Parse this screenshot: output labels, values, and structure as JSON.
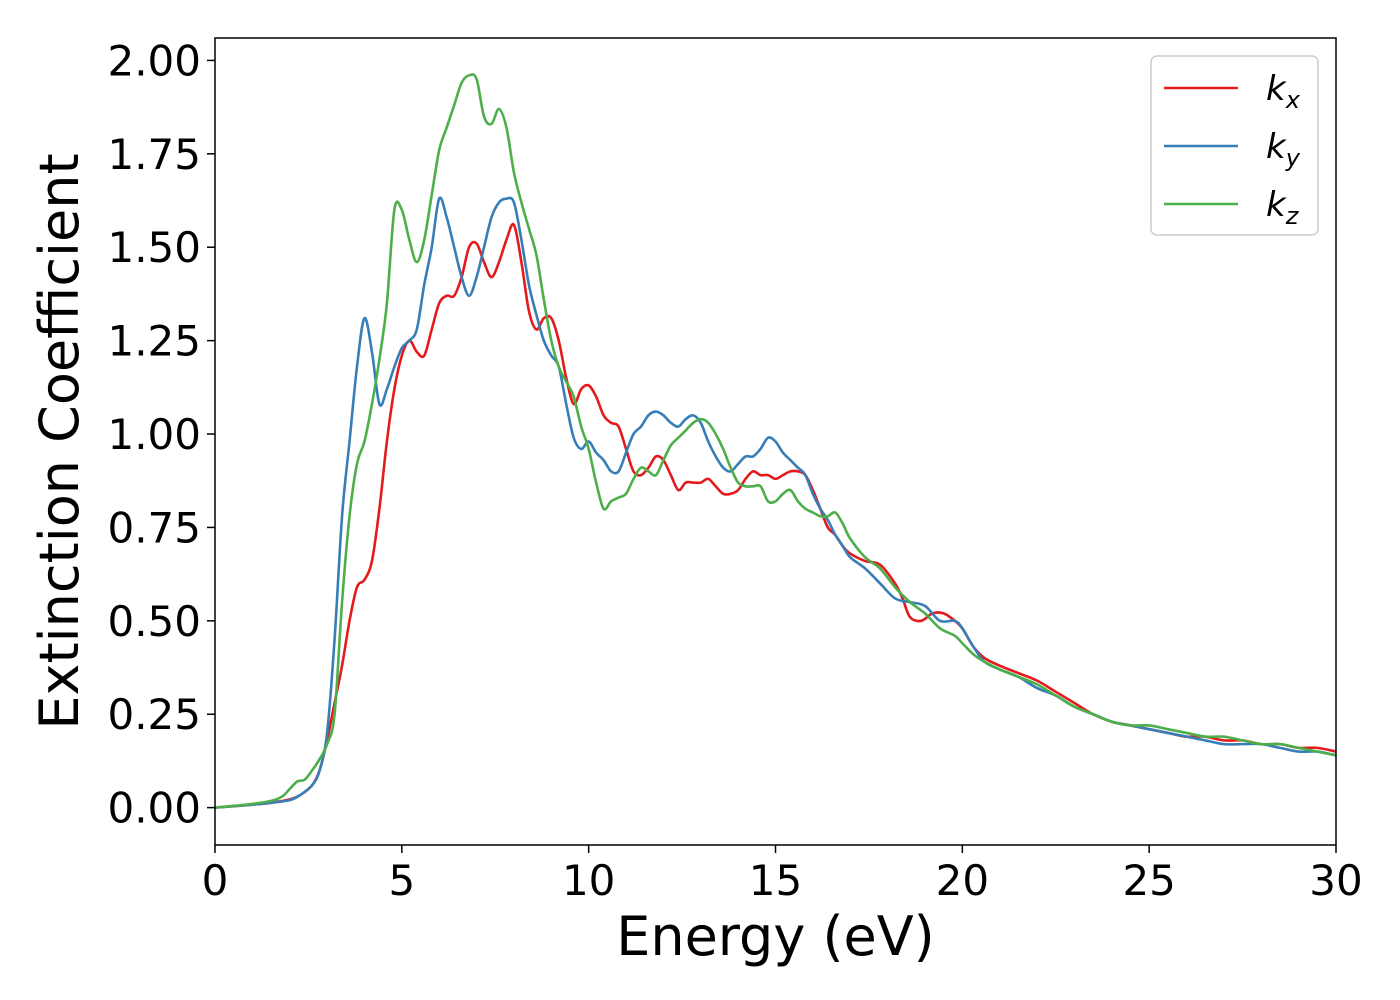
{
  "chart_data": {
    "type": "line",
    "xlabel": "Energy (eV)",
    "ylabel": "Extinction Coefficient",
    "xlim": [
      0,
      30
    ],
    "ylim": [
      -0.1,
      2.06
    ],
    "xticks": [
      0,
      5,
      10,
      15,
      20,
      25,
      30
    ],
    "xtick_labels": [
      "0",
      "5",
      "10",
      "15",
      "20",
      "25",
      "30"
    ],
    "yticks": [
      0,
      0.25,
      0.5,
      0.75,
      1.0,
      1.25,
      1.5,
      1.75,
      2.0
    ],
    "ytick_labels": [
      "0.00",
      "0.25",
      "0.50",
      "0.75",
      "1.00",
      "1.25",
      "1.50",
      "1.75",
      "2.00"
    ],
    "grid": false,
    "legend_position": "top-right",
    "series": [
      {
        "name": "k",
        "subscript": "x",
        "color": "#e41a1c",
        "x": [
          0,
          1,
          1.5,
          2,
          2.3,
          2.6,
          2.8,
          3.0,
          3.2,
          3.4,
          3.6,
          3.8,
          4.0,
          4.2,
          4.4,
          4.6,
          4.8,
          5.0,
          5.2,
          5.4,
          5.6,
          5.8,
          6.0,
          6.2,
          6.4,
          6.6,
          6.8,
          7.0,
          7.2,
          7.4,
          7.6,
          7.8,
          8.0,
          8.2,
          8.4,
          8.6,
          8.8,
          9.0,
          9.2,
          9.4,
          9.6,
          9.8,
          10.0,
          10.2,
          10.4,
          10.6,
          10.8,
          11.0,
          11.2,
          11.4,
          11.6,
          11.8,
          12.0,
          12.2,
          12.4,
          12.6,
          12.8,
          13.0,
          13.2,
          13.4,
          13.6,
          13.8,
          14.0,
          14.2,
          14.4,
          14.6,
          14.8,
          15.0,
          15.2,
          15.4,
          15.6,
          15.8,
          16.0,
          16.2,
          16.4,
          16.6,
          16.8,
          17.0,
          17.4,
          17.8,
          18.2,
          18.4,
          18.6,
          18.9,
          19.2,
          19.5,
          19.8,
          20.0,
          20.3,
          20.6,
          21.0,
          21.5,
          22.0,
          22.5,
          23.0,
          23.5,
          24.0,
          24.5,
          25.0,
          25.5,
          26.0,
          26.5,
          27.0,
          27.5,
          28.0,
          28.5,
          29.0,
          29.5,
          30.0
        ],
        "values": [
          0.0,
          0.008,
          0.013,
          0.022,
          0.035,
          0.06,
          0.1,
          0.18,
          0.28,
          0.38,
          0.5,
          0.59,
          0.61,
          0.66,
          0.8,
          0.98,
          1.12,
          1.21,
          1.25,
          1.22,
          1.21,
          1.28,
          1.35,
          1.37,
          1.37,
          1.42,
          1.5,
          1.51,
          1.46,
          1.42,
          1.46,
          1.52,
          1.56,
          1.46,
          1.33,
          1.28,
          1.31,
          1.31,
          1.25,
          1.15,
          1.08,
          1.12,
          1.13,
          1.1,
          1.05,
          1.03,
          1.02,
          0.96,
          0.9,
          0.89,
          0.91,
          0.94,
          0.93,
          0.89,
          0.85,
          0.87,
          0.87,
          0.87,
          0.88,
          0.86,
          0.84,
          0.84,
          0.85,
          0.88,
          0.9,
          0.89,
          0.89,
          0.88,
          0.89,
          0.9,
          0.9,
          0.89,
          0.85,
          0.8,
          0.75,
          0.73,
          0.7,
          0.68,
          0.66,
          0.65,
          0.6,
          0.56,
          0.51,
          0.5,
          0.52,
          0.52,
          0.5,
          0.48,
          0.43,
          0.4,
          0.38,
          0.36,
          0.34,
          0.31,
          0.28,
          0.25,
          0.23,
          0.22,
          0.21,
          0.2,
          0.19,
          0.19,
          0.18,
          0.18,
          0.17,
          0.17,
          0.16,
          0.16,
          0.15
        ]
      },
      {
        "name": "k",
        "subscript": "y",
        "color": "#377eb8",
        "x": [
          0,
          1,
          1.5,
          2,
          2.3,
          2.6,
          2.8,
          3.0,
          3.2,
          3.4,
          3.6,
          3.8,
          4.0,
          4.2,
          4.4,
          4.6,
          4.8,
          5.0,
          5.2,
          5.4,
          5.6,
          5.8,
          6.0,
          6.2,
          6.4,
          6.6,
          6.8,
          7.0,
          7.2,
          7.4,
          7.6,
          7.8,
          8.0,
          8.2,
          8.4,
          8.6,
          8.8,
          9.0,
          9.2,
          9.4,
          9.6,
          9.8,
          10.0,
          10.2,
          10.4,
          10.6,
          10.8,
          11.0,
          11.2,
          11.4,
          11.6,
          11.8,
          12.0,
          12.2,
          12.4,
          12.6,
          12.8,
          13.0,
          13.2,
          13.4,
          13.6,
          13.8,
          14.0,
          14.2,
          14.4,
          14.6,
          14.8,
          15.0,
          15.2,
          15.4,
          15.6,
          15.8,
          16.0,
          16.2,
          16.4,
          16.6,
          16.8,
          17.0,
          17.4,
          17.8,
          18.2,
          18.6,
          19.0,
          19.4,
          19.8,
          20.0,
          20.3,
          20.6,
          21.0,
          21.5,
          22.0,
          22.5,
          23.0,
          23.5,
          24.0,
          24.5,
          25.0,
          25.5,
          26.0,
          26.5,
          27.0,
          27.5,
          28.0,
          28.5,
          29.0,
          29.5,
          30.0
        ],
        "values": [
          0.0,
          0.008,
          0.013,
          0.02,
          0.035,
          0.06,
          0.1,
          0.2,
          0.45,
          0.78,
          0.98,
          1.18,
          1.31,
          1.22,
          1.08,
          1.12,
          1.18,
          1.23,
          1.25,
          1.28,
          1.4,
          1.5,
          1.63,
          1.58,
          1.5,
          1.42,
          1.37,
          1.42,
          1.5,
          1.58,
          1.62,
          1.63,
          1.62,
          1.52,
          1.4,
          1.32,
          1.25,
          1.21,
          1.18,
          1.08,
          0.99,
          0.96,
          0.98,
          0.95,
          0.93,
          0.9,
          0.9,
          0.95,
          1.0,
          1.02,
          1.05,
          1.06,
          1.05,
          1.03,
          1.02,
          1.04,
          1.05,
          1.03,
          0.98,
          0.94,
          0.91,
          0.9,
          0.92,
          0.94,
          0.94,
          0.96,
          0.99,
          0.98,
          0.95,
          0.93,
          0.91,
          0.89,
          0.84,
          0.8,
          0.77,
          0.73,
          0.7,
          0.67,
          0.64,
          0.6,
          0.56,
          0.55,
          0.54,
          0.5,
          0.5,
          0.48,
          0.43,
          0.39,
          0.37,
          0.35,
          0.32,
          0.3,
          0.27,
          0.25,
          0.23,
          0.22,
          0.21,
          0.2,
          0.19,
          0.18,
          0.17,
          0.17,
          0.17,
          0.16,
          0.15,
          0.15,
          0.14
        ]
      },
      {
        "name": "k",
        "subscript": "z",
        "color": "#4daf4a",
        "x": [
          0,
          1,
          1.5,
          1.8,
          2.0,
          2.2,
          2.4,
          2.6,
          2.8,
          3.0,
          3.2,
          3.4,
          3.6,
          3.8,
          4.0,
          4.2,
          4.4,
          4.6,
          4.8,
          5.0,
          5.2,
          5.4,
          5.6,
          5.8,
          6.0,
          6.2,
          6.4,
          6.6,
          6.8,
          7.0,
          7.2,
          7.4,
          7.6,
          7.8,
          8.0,
          8.2,
          8.4,
          8.6,
          8.8,
          9.0,
          9.2,
          9.4,
          9.6,
          9.8,
          10.0,
          10.2,
          10.4,
          10.6,
          10.8,
          11.0,
          11.2,
          11.4,
          11.6,
          11.8,
          12.0,
          12.2,
          12.4,
          12.6,
          12.8,
          13.0,
          13.2,
          13.4,
          13.6,
          13.8,
          14.0,
          14.2,
          14.4,
          14.6,
          14.8,
          15.0,
          15.2,
          15.4,
          15.6,
          15.8,
          16.0,
          16.2,
          16.4,
          16.6,
          16.8,
          17.0,
          17.4,
          17.8,
          18.2,
          18.6,
          19.0,
          19.4,
          19.8,
          20.0,
          20.3,
          20.6,
          21.0,
          21.5,
          22.0,
          22.5,
          23.0,
          23.5,
          24.0,
          24.5,
          25.0,
          25.5,
          26.0,
          26.5,
          27.0,
          27.5,
          28.0,
          28.5,
          29.0,
          29.5,
          30.0
        ],
        "values": [
          0.0,
          0.01,
          0.018,
          0.03,
          0.05,
          0.07,
          0.075,
          0.1,
          0.13,
          0.17,
          0.25,
          0.55,
          0.78,
          0.92,
          0.98,
          1.08,
          1.2,
          1.35,
          1.6,
          1.6,
          1.52,
          1.46,
          1.52,
          1.64,
          1.76,
          1.82,
          1.88,
          1.94,
          1.96,
          1.95,
          1.85,
          1.83,
          1.87,
          1.82,
          1.7,
          1.62,
          1.55,
          1.48,
          1.36,
          1.25,
          1.18,
          1.14,
          1.1,
          1.02,
          0.96,
          0.87,
          0.8,
          0.82,
          0.83,
          0.84,
          0.88,
          0.91,
          0.9,
          0.89,
          0.93,
          0.97,
          0.99,
          1.01,
          1.03,
          1.04,
          1.03,
          1.0,
          0.96,
          0.91,
          0.87,
          0.86,
          0.86,
          0.86,
          0.82,
          0.82,
          0.84,
          0.85,
          0.82,
          0.8,
          0.79,
          0.78,
          0.78,
          0.79,
          0.76,
          0.72,
          0.67,
          0.64,
          0.59,
          0.55,
          0.52,
          0.48,
          0.46,
          0.44,
          0.41,
          0.39,
          0.37,
          0.35,
          0.33,
          0.3,
          0.27,
          0.25,
          0.23,
          0.22,
          0.22,
          0.21,
          0.2,
          0.19,
          0.19,
          0.18,
          0.17,
          0.17,
          0.16,
          0.15,
          0.14
        ]
      }
    ]
  }
}
